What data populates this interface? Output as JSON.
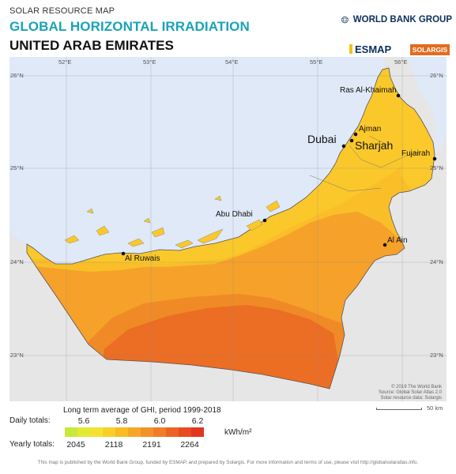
{
  "header": {
    "subtitle": "SOLAR RESOURCE MAP",
    "title": "GLOBAL HORIZONTAL IRRADIATION",
    "country": "UNITED ARAB EMIRATES"
  },
  "logos": {
    "world_bank": "WORLD BANK GROUP",
    "esmap": "ESMAP",
    "solargis": "SOLARGIS"
  },
  "map": {
    "longitude_ticks": [
      "52°E",
      "53°E",
      "54°E",
      "55°E",
      "56°E"
    ],
    "latitude_ticks": [
      "26°N",
      "25°N",
      "24°N",
      "23°N"
    ],
    "cities": {
      "ras_al_khaimah": "Ras Al-Khaimah",
      "ajman": "Ajman",
      "dubai": "Dubai",
      "sharjah": "Sharjah",
      "fujairah": "Fujairah",
      "abu_dhabi": "Abu Dhabi",
      "al_ain": "Al Ain",
      "al_ruwais": "Al Ruwais"
    },
    "colors": {
      "sea": "#dfe9f7",
      "land_outside": "#e6e6e6",
      "ghi_low": "#f9bf27",
      "ghi_mid": "#f6a42a",
      "ghi_high": "#f08a25",
      "ghi_peak": "#ec6423"
    }
  },
  "credits": {
    "line1": "© 2019 The World Bank",
    "line2": "Source: Global Solar Atlas 2.0",
    "line3": "Solar resource data: Solargis"
  },
  "scale_bar": {
    "label": "50 km"
  },
  "legend": {
    "title": "Long term average of GHI, period 1999-2018",
    "daily_label": "Daily totals:",
    "yearly_label": "Yearly totals:",
    "daily_values": [
      "5.6",
      "5.8",
      "6.0",
      "6.2"
    ],
    "yearly_values": [
      "2045",
      "2118",
      "2191",
      "2264"
    ],
    "unit": "kWh/m²",
    "colors": [
      "#c7e93c",
      "#e3ea35",
      "#f4e233",
      "#f9cf2a",
      "#f9bc24",
      "#f7a628",
      "#f3922a",
      "#f07d25",
      "#ec6423",
      "#e84b21",
      "#e2361f"
    ]
  },
  "footer": {
    "text": "This map is published by the World Bank Group, funded by ESMAP, and prepared by Solargis. For more information and terms of use, please visit http://globalsolaratlas.info."
  }
}
